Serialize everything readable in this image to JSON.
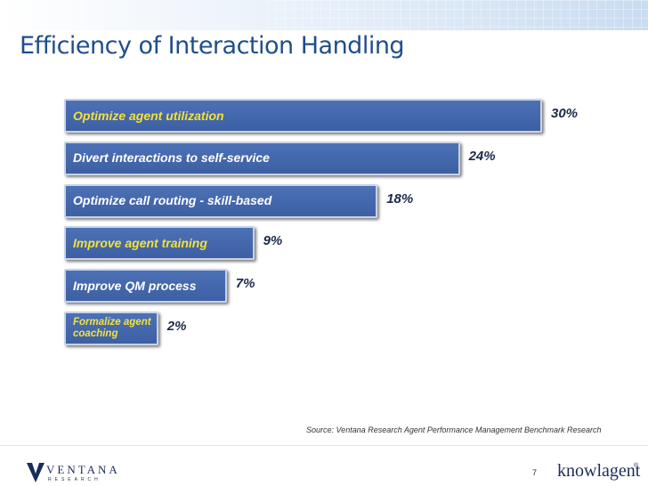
{
  "chart_data": {
    "type": "bar",
    "orientation": "horizontal",
    "title": "Efficiency of Interaction Handling",
    "categories": [
      "Optimize agent utilization",
      "Divert interactions to self-service",
      "Optimize call routing - skill-based",
      "Improve agent training",
      "Improve QM process",
      "Formalize agent coaching"
    ],
    "values": [
      30,
      24,
      18,
      9,
      7,
      2
    ],
    "value_labels": [
      "30%",
      "24%",
      "18%",
      "9%",
      "7%",
      "2%"
    ],
    "color": "#4d71b6",
    "label_colors": [
      "#f2e23a",
      "#ffffff",
      "#ffffff",
      "#f2e23a",
      "#ffffff",
      "#f2e23a"
    ],
    "source": "Source: Ventana Research Agent Performance Management Benchmark Research"
  },
  "footer": {
    "logo_left": "VENTANA",
    "logo_left_sub": "RESEARCH",
    "page_number": "7",
    "logo_right": "knowlagent",
    "logo_right_mark": "®"
  }
}
